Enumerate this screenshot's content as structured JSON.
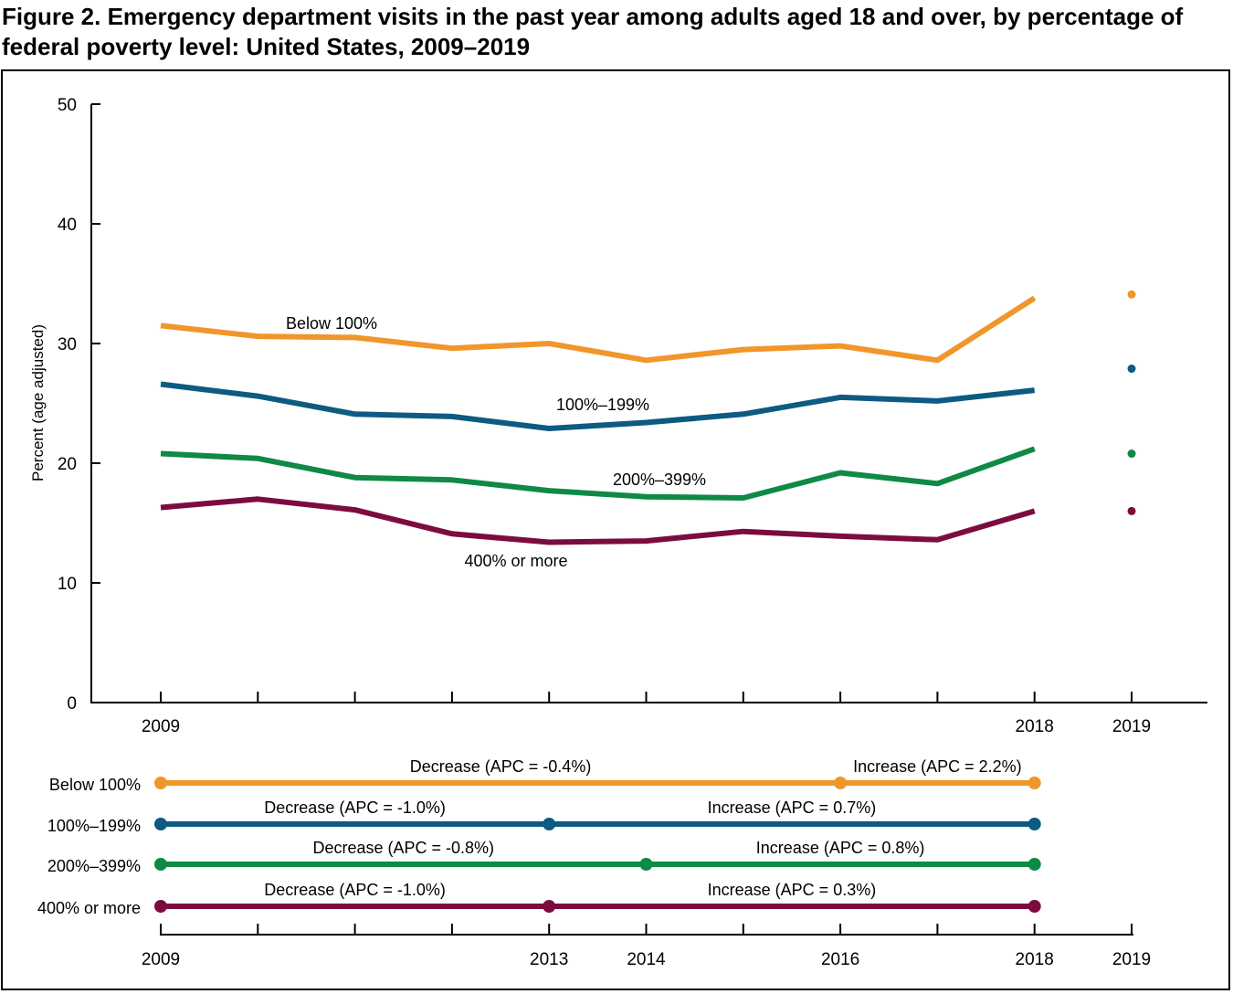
{
  "title": "Figure 2. Emergency department visits in the past year among adults aged 18 and over, by percentage of federal poverty level: United States, 2009–2019",
  "colors": {
    "below_100": "#F0962B",
    "p100_199": "#0D5A82",
    "p200_399": "#0E8A45",
    "p400_more": "#7C0C3F",
    "axis": "#000000"
  },
  "chart_data": {
    "type": "line",
    "ylabel": "Percent (age adjusted)",
    "xlabel": "",
    "ylim": [
      0,
      50
    ],
    "yticks": [
      "0",
      "10",
      "20",
      "30",
      "40",
      "50"
    ],
    "x": [
      2009,
      2010,
      2011,
      2012,
      2013,
      2014,
      2015,
      2016,
      2017,
      2018
    ],
    "x_tick_labels": [
      {
        "year": 2009,
        "label": "2009"
      },
      {
        "year": 2018,
        "label": "2018"
      },
      {
        "year": 2019,
        "label": "2019"
      }
    ],
    "grid": false,
    "series": [
      {
        "name": "Below 100%",
        "color_key": "below_100",
        "values": [
          31.5,
          30.6,
          30.5,
          29.6,
          30.0,
          28.6,
          29.5,
          29.8,
          28.6,
          33.8
        ],
        "point_2019": 34.1
      },
      {
        "name": "100%–199%",
        "color_key": "p100_199",
        "values": [
          26.6,
          25.6,
          24.1,
          23.9,
          22.9,
          23.4,
          24.1,
          25.5,
          25.2,
          26.1
        ],
        "point_2019": 27.9
      },
      {
        "name": "200%–399%",
        "color_key": "p200_399",
        "values": [
          20.8,
          20.4,
          18.8,
          18.6,
          17.7,
          17.2,
          17.1,
          19.2,
          18.3,
          21.2
        ],
        "point_2019": 20.8
      },
      {
        "name": "400% or more",
        "color_key": "p400_more",
        "values": [
          16.3,
          17.0,
          16.1,
          14.1,
          13.4,
          13.5,
          14.3,
          13.9,
          13.6,
          16.0
        ],
        "point_2019": 16.0
      }
    ]
  },
  "trends": {
    "x_tick_labels": [
      {
        "year": 2009,
        "label": "2009"
      },
      {
        "year": 2013,
        "label": "2013"
      },
      {
        "year": 2014,
        "label": "2014"
      },
      {
        "year": 2016,
        "label": "2016"
      },
      {
        "year": 2018,
        "label": "2018"
      },
      {
        "year": 2019,
        "label": "2019"
      }
    ],
    "rows": [
      {
        "label": "Below 100%",
        "color_key": "below_100",
        "segments": [
          {
            "start": 2009,
            "end": 2016,
            "text": "Decrease (APC = -0.4%)"
          },
          {
            "start": 2016,
            "end": 2018,
            "text": "Increase (APC = 2.2%)"
          }
        ]
      },
      {
        "label": "100%–199%",
        "color_key": "p100_199",
        "segments": [
          {
            "start": 2009,
            "end": 2013,
            "text": "Decrease (APC = -1.0%)"
          },
          {
            "start": 2013,
            "end": 2018,
            "text": "Increase (APC = 0.7%)"
          }
        ]
      },
      {
        "label": "200%–399%",
        "color_key": "p200_399",
        "segments": [
          {
            "start": 2009,
            "end": 2014,
            "text": "Decrease (APC = -0.8%)"
          },
          {
            "start": 2014,
            "end": 2018,
            "text": "Increase (APC = 0.8%)"
          }
        ]
      },
      {
        "label": "400% or more",
        "color_key": "p400_more",
        "segments": [
          {
            "start": 2009,
            "end": 2013,
            "text": "Decrease (APC = -1.0%)"
          },
          {
            "start": 2013,
            "end": 2018,
            "text": "Increase (APC = 0.3%)"
          }
        ]
      }
    ]
  }
}
